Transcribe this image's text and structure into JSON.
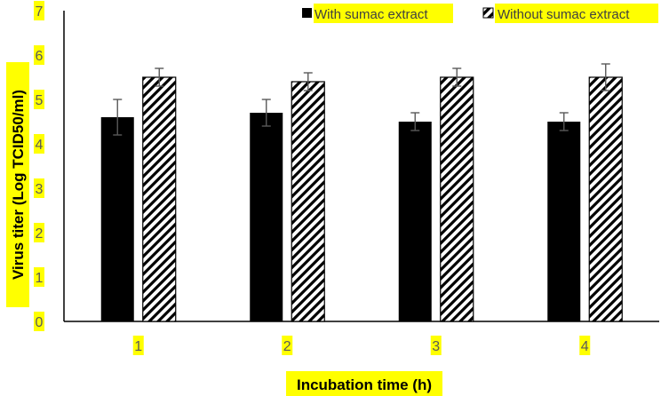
{
  "chart_data": {
    "type": "bar",
    "title": "",
    "xlabel": "Incubation time (h)",
    "ylabel": "Virus titer (Log TCID50/ml)",
    "ylim": [
      0,
      7
    ],
    "yticks": [
      "0",
      "1",
      "2",
      "3",
      "4",
      "5",
      "6",
      "7"
    ],
    "categories": [
      "1",
      "2",
      "3",
      "4"
    ],
    "series": [
      {
        "name": "With sumac extract",
        "fill": "solid",
        "color": "#000000",
        "values": [
          4.6,
          4.7,
          4.5,
          4.5
        ],
        "errors": [
          0.4,
          0.3,
          0.2,
          0.2
        ]
      },
      {
        "name": "Without sumac extract",
        "fill": "diagonal-stripes",
        "color": "#000000",
        "values": [
          5.5,
          5.4,
          5.5,
          5.5
        ],
        "errors": [
          0.2,
          0.2,
          0.2,
          0.3
        ]
      }
    ],
    "legend_position": "top-right",
    "grid": false,
    "highlight_color": "#ffff00"
  }
}
